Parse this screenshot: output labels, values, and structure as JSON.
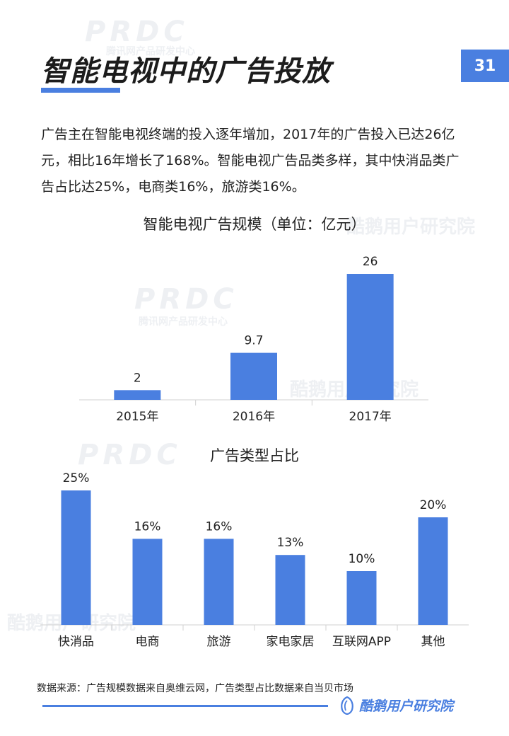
{
  "header": {
    "title": "智能电视中的广告投放",
    "page_number": "31"
  },
  "intro": "广告主在智能电视终端的投入逐年增加，2017年的广告投入已达26亿元，相比16年增长了168%。智能电视广告品类多样，其中快消品类广告占比达25%，电商类16%，旅游类16%。",
  "chart_data": [
    {
      "type": "bar",
      "title": "智能电视广告规模（单位：亿元）",
      "categories": [
        "2015年",
        "2016年",
        "2017年"
      ],
      "values": [
        2,
        9.7,
        26
      ],
      "value_labels": [
        "2",
        "9.7",
        "26"
      ],
      "ylim": [
        0,
        26
      ],
      "grid": false,
      "color": "#4a7fe0"
    },
    {
      "type": "bar",
      "title": "广告类型占比",
      "categories": [
        "快消品",
        "电商",
        "旅游",
        "家电家居",
        "互联网APP",
        "其他"
      ],
      "values": [
        25,
        16,
        16,
        13,
        10,
        20
      ],
      "value_labels": [
        "25%",
        "16%",
        "16%",
        "13%",
        "10%",
        "20%"
      ],
      "ylim": [
        0,
        25
      ],
      "grid": false,
      "color": "#4a7fe0"
    }
  ],
  "footer": {
    "source": "数据来源：广告规模数据来自奥维云网，广告类型占比数据来自当贝市场",
    "brand": "酷鹅用户研究院",
    "brand_icon": "penguin-logo-icon"
  },
  "watermark": {
    "prdc": "PRDC",
    "tencent": "腾讯网产品研发中心",
    "kuyu": "酷鹅用户研究院"
  },
  "colors": {
    "accent": "#4a7fe0",
    "axis": "#d0d0d0",
    "text": "#222222"
  }
}
